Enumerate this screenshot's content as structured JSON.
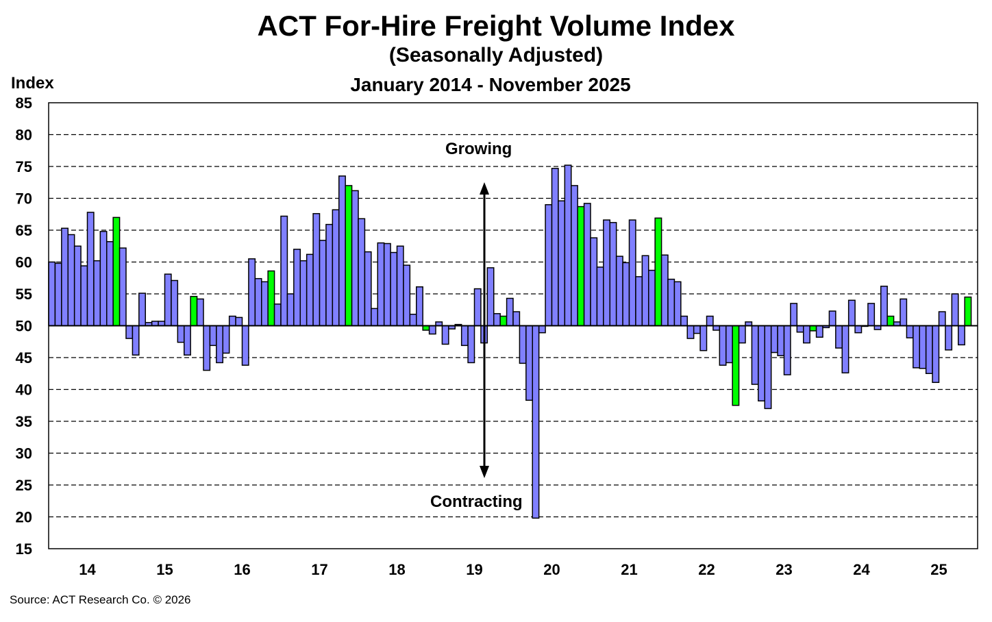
{
  "chart_data": {
    "type": "bar",
    "title": "ACT For-Hire Freight Volume Index",
    "subtitle": "(Seasonally Adjusted)",
    "date_range": "January 2014 - November 2025",
    "ylabel": "Index",
    "ylim": [
      15,
      85
    ],
    "yticks": [
      15,
      20,
      25,
      30,
      35,
      40,
      45,
      50,
      55,
      60,
      65,
      70,
      75,
      80,
      85
    ],
    "baseline": 50,
    "grid": true,
    "xtick_labels": [
      "14",
      "15",
      "16",
      "17",
      "18",
      "19",
      "20",
      "21",
      "22",
      "23",
      "24",
      "25"
    ],
    "annotations": {
      "up": "Growing",
      "down": "Contracting"
    },
    "colors": {
      "bar": "#8080ff",
      "highlight_november": "#00ff00"
    },
    "start": "2014-01",
    "values": [
      60.0,
      59.8,
      65.3,
      64.3,
      62.5,
      59.4,
      67.8,
      60.2,
      64.8,
      63.2,
      67.0,
      62.2,
      48.0,
      45.4,
      55.1,
      50.5,
      50.7,
      50.7,
      58.1,
      57.1,
      47.4,
      45.4,
      54.6,
      54.2,
      43.0,
      46.9,
      44.2,
      45.7,
      51.5,
      51.3,
      43.8,
      60.5,
      57.4,
      56.9,
      58.6,
      53.4,
      67.2,
      55.0,
      62.0,
      60.2,
      61.2,
      67.6,
      63.4,
      65.9,
      68.2,
      73.5,
      72.0,
      71.2,
      66.8,
      61.6,
      52.7,
      63.0,
      62.9,
      61.5,
      62.5,
      59.5,
      51.8,
      56.1,
      49.3,
      48.7,
      50.6,
      47.1,
      49.5,
      50.2,
      46.9,
      44.2,
      55.8,
      47.3,
      59.1,
      51.9,
      51.5,
      54.3,
      52.2,
      44.1,
      38.3,
      19.8,
      48.9,
      69.0,
      74.7,
      69.6,
      75.2,
      72.0,
      68.7,
      69.2,
      63.8,
      59.2,
      66.6,
      66.2,
      60.9,
      59.9,
      66.6,
      57.7,
      61.0,
      58.7,
      66.9,
      61.1,
      57.3,
      56.9,
      51.5,
      48.0,
      48.8,
      46.1,
      51.5,
      49.3,
      43.8,
      44.2,
      37.5,
      47.3,
      50.6,
      40.8,
      38.2,
      37.0,
      45.8,
      45.3,
      42.3,
      53.5,
      49.0,
      47.3,
      49.2,
      48.2,
      49.7,
      52.3,
      46.5,
      42.6,
      54.0,
      48.9,
      49.9,
      53.5,
      49.4,
      56.2,
      51.5,
      50.6,
      54.2,
      48.1,
      43.4,
      43.3,
      42.5,
      41.1,
      52.2,
      46.2,
      55.0,
      47.0,
      54.5
    ]
  },
  "source": "Source:  ACT Research  Co. © 2026"
}
